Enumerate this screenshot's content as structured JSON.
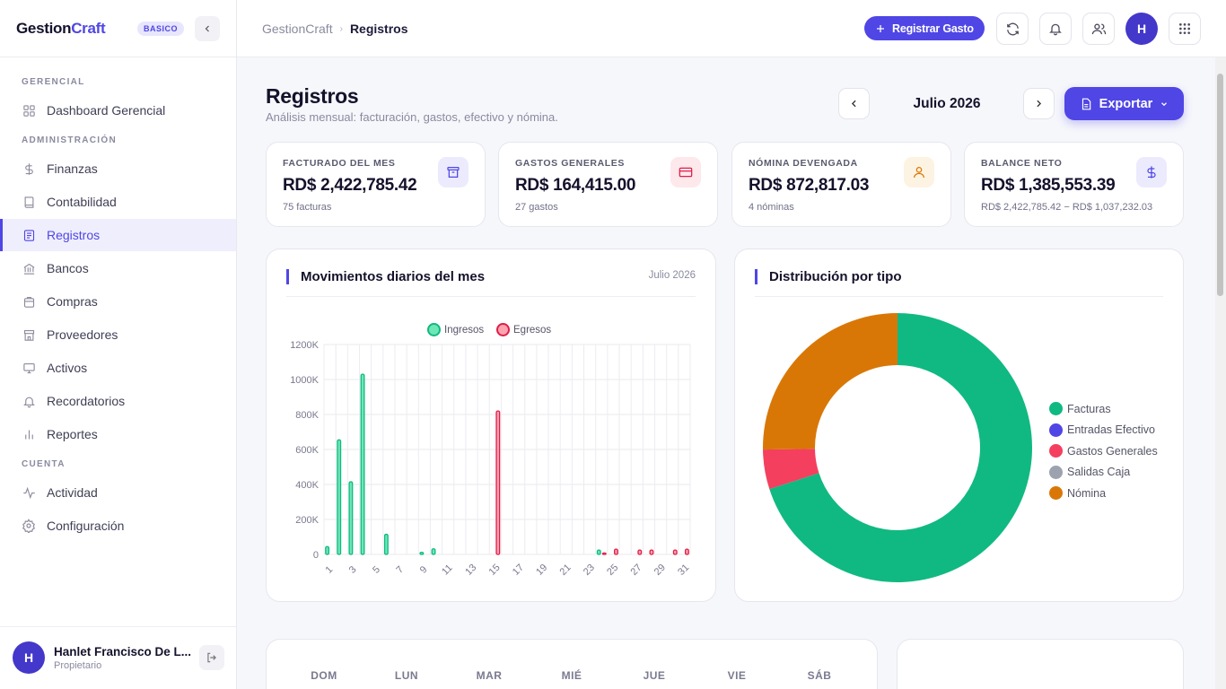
{
  "brand": {
    "name_a": "Gestion",
    "name_b": "Craft",
    "plan": "BASICO"
  },
  "sidebar": {
    "sections": [
      "GERENCIAL",
      "ADMINISTRACIÓN",
      "CUENTA"
    ],
    "items": [
      {
        "label": "Dashboard Gerencial",
        "icon": "grid-icon"
      },
      {
        "label": "Finanzas",
        "icon": "dollar-icon"
      },
      {
        "label": "Contabilidad",
        "icon": "book-icon"
      },
      {
        "label": "Registros",
        "icon": "document-icon",
        "active": true
      },
      {
        "label": "Bancos",
        "icon": "bank-icon"
      },
      {
        "label": "Compras",
        "icon": "basket-icon"
      },
      {
        "label": "Proveedores",
        "icon": "store-icon"
      },
      {
        "label": "Activos",
        "icon": "monitor-icon"
      },
      {
        "label": "Recordatorios",
        "icon": "bell-icon"
      },
      {
        "label": "Reportes",
        "icon": "bar-chart-icon"
      },
      {
        "label": "Actividad",
        "icon": "activity-icon"
      },
      {
        "label": "Configuración",
        "icon": "gear-icon"
      }
    ],
    "user": {
      "initial": "H",
      "name": "Hanlet Francisco De L...",
      "role": "Propietario"
    }
  },
  "topbar": {
    "breadcrumb_root": "GestionCraft",
    "breadcrumb_current": "Registros",
    "primary_button": "Registrar Gasto",
    "avatar_initial": "H"
  },
  "page": {
    "title": "Registros",
    "subtitle": "Análisis mensual: facturación, gastos, efectivo y nómina.",
    "month": "Julio 2026",
    "export_label": "Exportar"
  },
  "kpis": [
    {
      "label": "FACTURADO DEL MES",
      "value": "RD$ 2,422,785.42",
      "foot": "75 facturas",
      "icon": "archive-icon",
      "color": "#4f46e5",
      "bg": "#ecebfd"
    },
    {
      "label": "GASTOS GENERALES",
      "value": "RD$ 164,415.00",
      "foot": "27 gastos",
      "icon": "credit-card-icon",
      "color": "#e11d48",
      "bg": "#fde8ec"
    },
    {
      "label": "NÓMINA DEVENGADA",
      "value": "RD$ 872,817.03",
      "foot": "4 nóminas",
      "icon": "user-icon",
      "color": "#d97706",
      "bg": "#fdf3e3"
    },
    {
      "label": "BALANCE NETO",
      "value": "RD$ 1,385,553.39",
      "foot": "RD$ 2,422,785.42 − RD$ 1,037,232.03",
      "icon": "dollar-icon",
      "color": "#4f46e5",
      "bg": "#ecebfd"
    }
  ],
  "daily_card": {
    "title": "Movimientos diarios del mes",
    "meta": "Julio 2026"
  },
  "pie_card": {
    "title": "Distribución por tipo"
  },
  "chart_data": [
    {
      "type": "bar",
      "title": "Movimientos diarios del mes",
      "x": [
        1,
        2,
        3,
        4,
        5,
        6,
        7,
        8,
        9,
        10,
        11,
        12,
        13,
        14,
        15,
        16,
        17,
        18,
        19,
        20,
        21,
        22,
        23,
        24,
        25,
        26,
        27,
        28,
        29,
        30,
        31
      ],
      "x_tick_labels": [
        "1",
        "3",
        "5",
        "7",
        "9",
        "11",
        "13",
        "15",
        "17",
        "19",
        "21",
        "23",
        "25",
        "27",
        "29",
        "31"
      ],
      "ylim": [
        0,
        1200000
      ],
      "y_tick_labels": [
        "0",
        "200K",
        "400K",
        "600K",
        "800K",
        "1000K",
        "1200K"
      ],
      "grid": true,
      "legend": "top-center",
      "series": [
        {
          "name": "Ingresos",
          "color": "#10b981",
          "fill": "#6ee7b7",
          "values": [
            45000,
            655000,
            415000,
            1030000,
            0,
            115000,
            0,
            0,
            12000,
            32000,
            0,
            0,
            0,
            0,
            0,
            0,
            0,
            0,
            0,
            0,
            0,
            0,
            0,
            25000,
            0,
            0,
            0,
            0,
            0,
            0,
            0
          ]
        },
        {
          "name": "Egresos",
          "color": "#e11d48",
          "fill": "#fda4af",
          "values": [
            0,
            0,
            0,
            0,
            0,
            0,
            0,
            0,
            0,
            0,
            0,
            0,
            0,
            0,
            820000,
            0,
            0,
            0,
            0,
            0,
            0,
            0,
            0,
            8000,
            30000,
            0,
            25000,
            25000,
            0,
            25000,
            30000
          ]
        }
      ]
    },
    {
      "type": "pie",
      "title": "Distribución por tipo",
      "legend": "right",
      "labels": [
        "Facturas",
        "Entradas Efectivo",
        "Gastos Generales",
        "Salidas Caja",
        "Nómina"
      ],
      "values": [
        2422785.42,
        0,
        164415.0,
        0,
        872817.03
      ],
      "colors": [
        "#10b981",
        "#4f46e5",
        "#f43f5e",
        "#9ca3af",
        "#d97706"
      ]
    }
  ],
  "calendar": {
    "weekdays": [
      "DOM",
      "LUN",
      "MAR",
      "MIÉ",
      "JUE",
      "VIE",
      "SÁB"
    ]
  }
}
